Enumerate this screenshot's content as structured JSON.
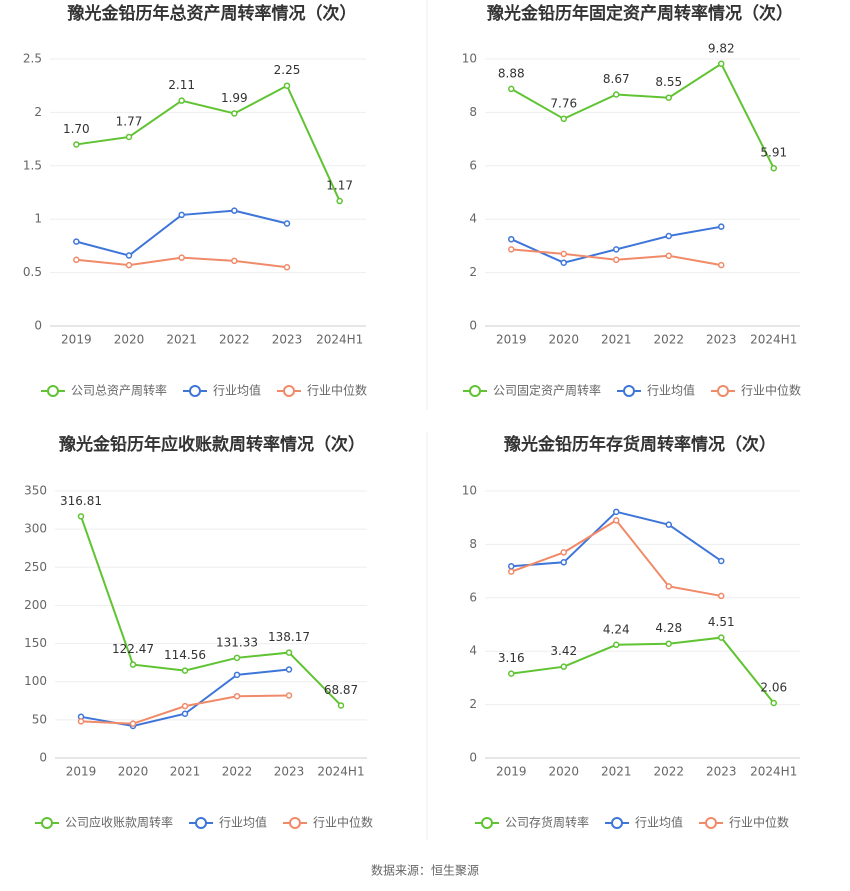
{
  "chart_data": [
    {
      "type": "line",
      "title": "豫光金铅历年总资产周转率情况（次）",
      "categories": [
        "2019",
        "2020",
        "2021",
        "2022",
        "2023",
        "2024H1"
      ],
      "ylim": [
        0,
        2.5
      ],
      "yticks": [
        0,
        0.5,
        1,
        1.5,
        2,
        2.5
      ],
      "grid": true,
      "legend": "bottom",
      "series": [
        {
          "name": "公司总资产周转率",
          "color": "#5fc332",
          "values": [
            1.7,
            1.77,
            2.11,
            1.99,
            2.25,
            1.17
          ],
          "value_labels": [
            "1.70",
            "1.77",
            "2.11",
            "1.99",
            "2.25",
            "1.17"
          ]
        },
        {
          "name": "行业均值",
          "color": "#3e75d9",
          "values": [
            0.79,
            0.66,
            1.04,
            1.08,
            0.96,
            null
          ]
        },
        {
          "name": "行业中位数",
          "color": "#f08a68",
          "values": [
            0.62,
            0.57,
            0.64,
            0.61,
            0.55,
            null
          ]
        }
      ]
    },
    {
      "type": "line",
      "title": "豫光金铅历年固定资产周转率情况（次）",
      "categories": [
        "2019",
        "2020",
        "2021",
        "2022",
        "2023",
        "2024H1"
      ],
      "ylim": [
        0,
        10
      ],
      "yticks": [
        0,
        2,
        4,
        6,
        8,
        10
      ],
      "grid": true,
      "legend": "bottom",
      "series": [
        {
          "name": "公司固定资产周转率",
          "color": "#5fc332",
          "values": [
            8.88,
            7.76,
            8.67,
            8.55,
            9.82,
            5.91
          ]
        },
        {
          "name": "行业均值",
          "color": "#3e75d9",
          "values": [
            3.25,
            2.37,
            2.87,
            3.37,
            3.72,
            null
          ]
        },
        {
          "name": "行业中位数",
          "color": "#f08a68",
          "values": [
            2.87,
            2.7,
            2.48,
            2.63,
            2.28,
            null
          ]
        }
      ]
    },
    {
      "type": "line",
      "title": "豫光金铅历年应收账款周转率情况（次）",
      "categories": [
        "2019",
        "2020",
        "2021",
        "2022",
        "2023",
        "2024H1"
      ],
      "ylim": [
        0,
        350
      ],
      "yticks": [
        0,
        50,
        100,
        150,
        200,
        250,
        300,
        350
      ],
      "grid": true,
      "legend": "bottom",
      "series": [
        {
          "name": "公司应收账款周转率",
          "color": "#5fc332",
          "values": [
            316.81,
            122.47,
            114.56,
            131.33,
            138.17,
            68.87
          ]
        },
        {
          "name": "行业均值",
          "color": "#3e75d9",
          "values": [
            54,
            42,
            58,
            109,
            116,
            null
          ]
        },
        {
          "name": "行业中位数",
          "color": "#f08a68",
          "values": [
            48,
            45,
            68,
            81,
            82,
            null
          ]
        }
      ]
    },
    {
      "type": "line",
      "title": "豫光金铅历年存货周转率情况（次）",
      "categories": [
        "2019",
        "2020",
        "2021",
        "2022",
        "2023",
        "2024H1"
      ],
      "ylim": [
        0,
        10
      ],
      "yticks": [
        0,
        2,
        4,
        6,
        8,
        10
      ],
      "grid": true,
      "legend": "bottom",
      "series": [
        {
          "name": "公司存货周转率",
          "color": "#5fc332",
          "values": [
            3.16,
            3.42,
            4.24,
            4.28,
            4.51,
            2.06
          ]
        },
        {
          "name": "行业均值",
          "color": "#3e75d9",
          "values": [
            7.18,
            7.33,
            9.22,
            8.74,
            7.38,
            null
          ]
        },
        {
          "name": "行业中位数",
          "color": "#f08a68",
          "values": [
            6.98,
            7.7,
            8.9,
            6.43,
            6.07,
            null
          ]
        }
      ]
    }
  ],
  "source": "数据来源：恒生聚源"
}
